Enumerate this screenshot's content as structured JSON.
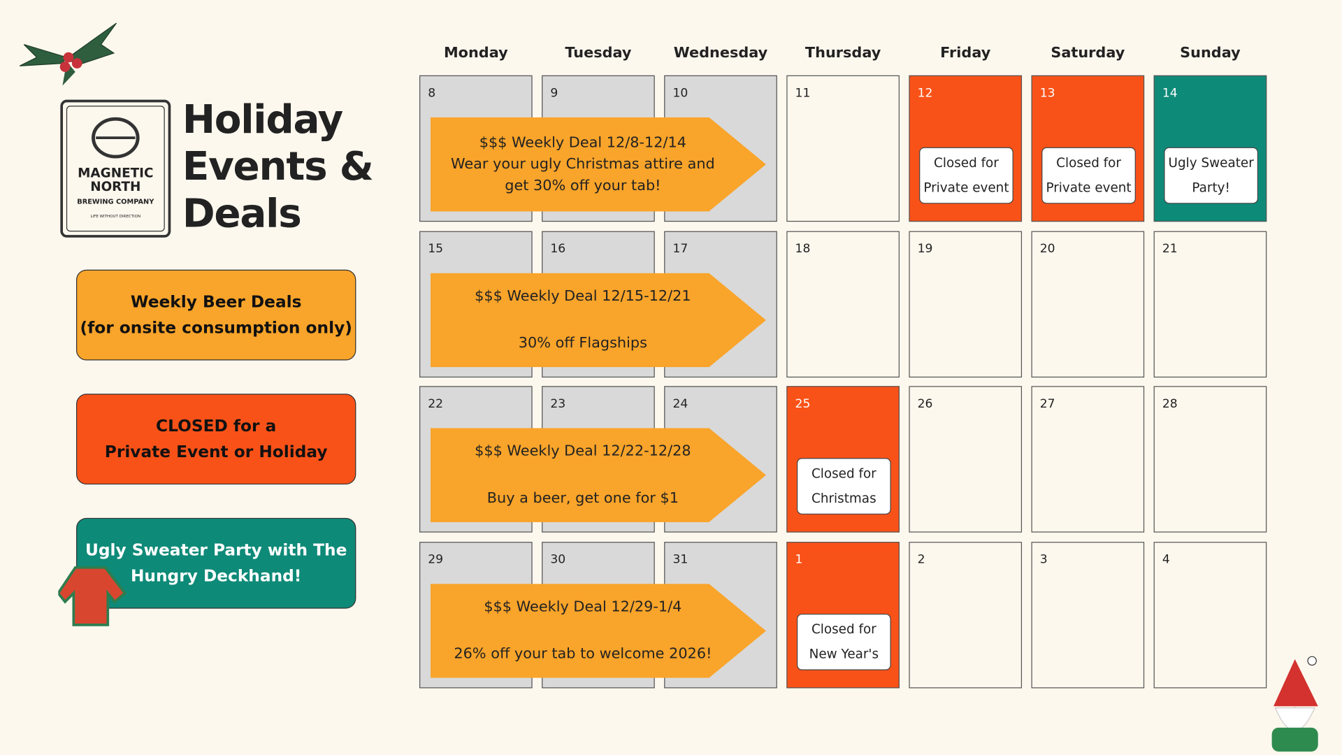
{
  "header": {
    "title_lines": [
      "Holiday",
      "Events &",
      "Deals"
    ],
    "logo": {
      "line1": "MAGNETIC",
      "line2": "NORTH",
      "line3": "BREWING COMPANY",
      "tagline": "LIFE WITHOUT DIRECTION"
    }
  },
  "legend": [
    {
      "lines": [
        "Weekly Beer Deals",
        "(for onsite consumption only)"
      ],
      "color": "#f9a42a",
      "text_color": "#111111"
    },
    {
      "lines": [
        "CLOSED for a",
        "Private Event or Holiday"
      ],
      "color": "#f95218",
      "text_color": "#111111"
    },
    {
      "lines": [
        "Ugly Sweater Party with The",
        "Hungry Deckhand!"
      ],
      "color": "#0e8a78",
      "text_color": "#ffffff"
    }
  ],
  "calendar": {
    "weekdays": [
      "Monday",
      "Tuesday",
      "Wednesday",
      "Thursday",
      "Friday",
      "Saturday",
      "Sunday"
    ],
    "weeks": [
      {
        "days": [
          {
            "day": "8",
            "fill": "#d9d9d9"
          },
          {
            "day": "9",
            "fill": "#d9d9d9"
          },
          {
            "day": "10",
            "fill": "#d9d9d9"
          },
          {
            "day": "11",
            "fill": "#fdf8ee"
          },
          {
            "day": "12",
            "fill": "#f95218",
            "event": [
              "Closed for",
              "Private event"
            ]
          },
          {
            "day": "13",
            "fill": "#f95218",
            "event": [
              "Closed for",
              "Private event"
            ]
          },
          {
            "day": "14",
            "fill": "#0e8a78",
            "event": [
              "Ugly Sweater",
              "Party!"
            ]
          }
        ],
        "deal": [
          "$$$ Weekly Deal 12/8-12/14",
          "Wear your ugly Christmas attire and",
          "get 30% off your tab!"
        ]
      },
      {
        "days": [
          {
            "day": "15",
            "fill": "#d9d9d9"
          },
          {
            "day": "16",
            "fill": "#d9d9d9"
          },
          {
            "day": "17",
            "fill": "#d9d9d9"
          },
          {
            "day": "18",
            "fill": "#fdf8ee"
          },
          {
            "day": "19",
            "fill": "#fdf8ee"
          },
          {
            "day": "20",
            "fill": "#fdf8ee"
          },
          {
            "day": "21",
            "fill": "#fdf8ee"
          }
        ],
        "deal": [
          "$$$ Weekly Deal 12/15-12/21",
          "30% off Flagships"
        ]
      },
      {
        "days": [
          {
            "day": "22",
            "fill": "#d9d9d9"
          },
          {
            "day": "23",
            "fill": "#d9d9d9"
          },
          {
            "day": "24",
            "fill": "#d9d9d9"
          },
          {
            "day": "25",
            "fill": "#f95218",
            "event": [
              "Closed for",
              "Christmas"
            ]
          },
          {
            "day": "26",
            "fill": "#fdf8ee"
          },
          {
            "day": "27",
            "fill": "#fdf8ee"
          },
          {
            "day": "28",
            "fill": "#fdf8ee"
          }
        ],
        "deal": [
          "$$$ Weekly Deal 12/22-12/28",
          "Buy a beer, get one for $1"
        ]
      },
      {
        "days": [
          {
            "day": "29",
            "fill": "#d9d9d9"
          },
          {
            "day": "30",
            "fill": "#d9d9d9"
          },
          {
            "day": "31",
            "fill": "#d9d9d9"
          },
          {
            "day": "1",
            "fill": "#f95218",
            "event": [
              "Closed for",
              "New Year's"
            ]
          },
          {
            "day": "2",
            "fill": "#fdf8ee"
          },
          {
            "day": "3",
            "fill": "#fdf8ee"
          },
          {
            "day": "4",
            "fill": "#fdf8ee"
          }
        ],
        "deal": [
          "$$$ Weekly Deal 12/29-1/4",
          "26% off your tab to welcome 2026!"
        ]
      }
    ]
  }
}
